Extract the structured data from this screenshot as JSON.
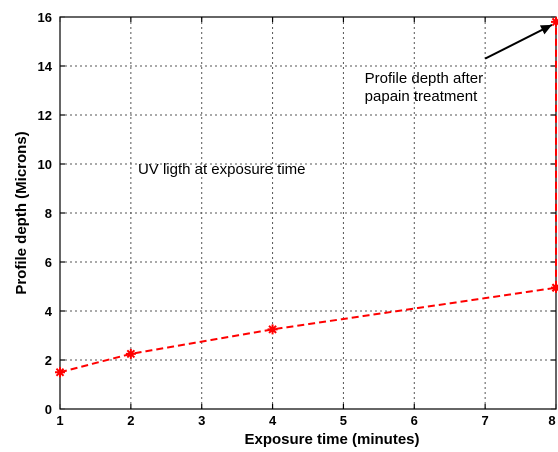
{
  "chart_data": {
    "type": "line",
    "title": "",
    "xlabel": "Exposure time (minutes)",
    "ylabel": "Profile depth (Microns)",
    "xlim": [
      1,
      8
    ],
    "ylim": [
      0,
      16
    ],
    "xticks": [
      1,
      2,
      3,
      4,
      5,
      6,
      7,
      8
    ],
    "yticks": [
      0,
      2,
      4,
      6,
      8,
      10,
      12,
      14,
      16
    ],
    "grid": true,
    "series": [
      {
        "color": "#ff0000",
        "line_style": "dashed",
        "marker": "star",
        "x": [
          1,
          2,
          4,
          8
        ],
        "y": [
          1.5,
          2.25,
          3.25,
          4.95
        ]
      },
      {
        "color": "#ff0000",
        "line_style": "dashed",
        "marker": "star",
        "x": [
          8,
          8
        ],
        "y": [
          4.95,
          15.8
        ]
      }
    ],
    "annotations": [
      {
        "id": "uv",
        "text": [
          "UV ligth at exposure time"
        ],
        "at": [
          2.1,
          9.6
        ]
      },
      {
        "id": "papain",
        "text": [
          "Profile depth after",
          "papain treatment"
        ],
        "at": [
          5.3,
          13.3
        ],
        "arrow_to": [
          8,
          15.8
        ],
        "arrow_from": [
          7.0,
          14.3
        ]
      }
    ]
  }
}
